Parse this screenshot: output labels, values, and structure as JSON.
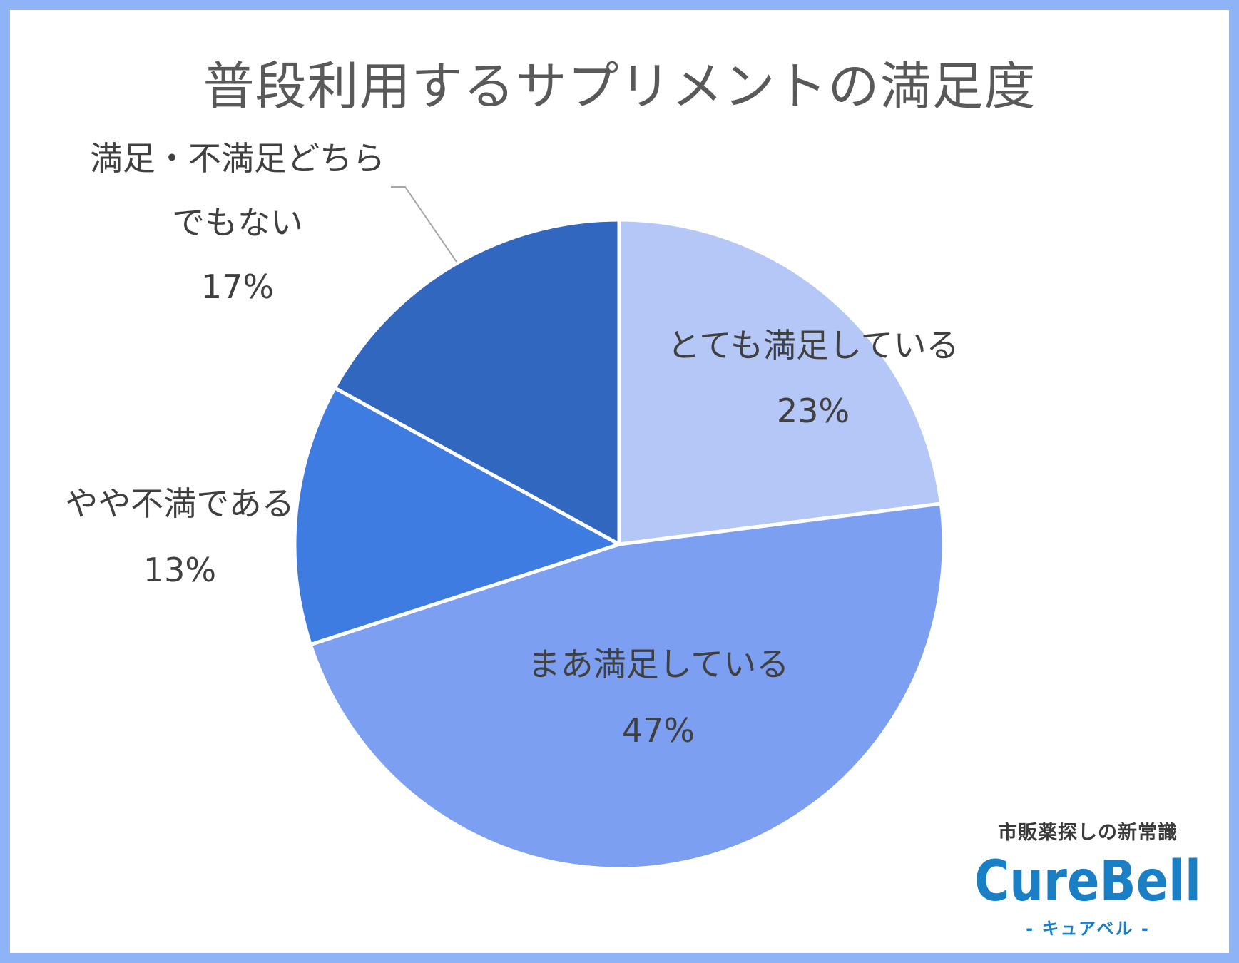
{
  "chart_data": {
    "type": "pie",
    "title": "普段利用するサプリメントの満足度",
    "slices": [
      {
        "label": "とても満足している",
        "value": 23,
        "pct_label": "23%",
        "color": "#b4c7f7"
      },
      {
        "label": "まあ満足している",
        "value": 47,
        "pct_label": "47%",
        "color": "#7c9ff2"
      },
      {
        "label": "やや不満である",
        "value": 13,
        "pct_label": "13%",
        "color": "#3f7ce2"
      },
      {
        "label": "満足・不満足どちらでもない",
        "label_lines": [
          "満足・不満足どちら",
          "でもない"
        ],
        "value": 17,
        "pct_label": "17%",
        "color": "#3167bf"
      }
    ],
    "start_angle_deg": 0,
    "direction": "clockwise",
    "legend": "none"
  },
  "brand": {
    "tagline": "市販薬探しの新常識",
    "logo_text": "CureBell",
    "sub_text": "- キュアベル -",
    "color": "#1a7fc4"
  },
  "colors": {
    "border": "#8eb4f7",
    "text": "#404040",
    "background": "#ffffff"
  }
}
